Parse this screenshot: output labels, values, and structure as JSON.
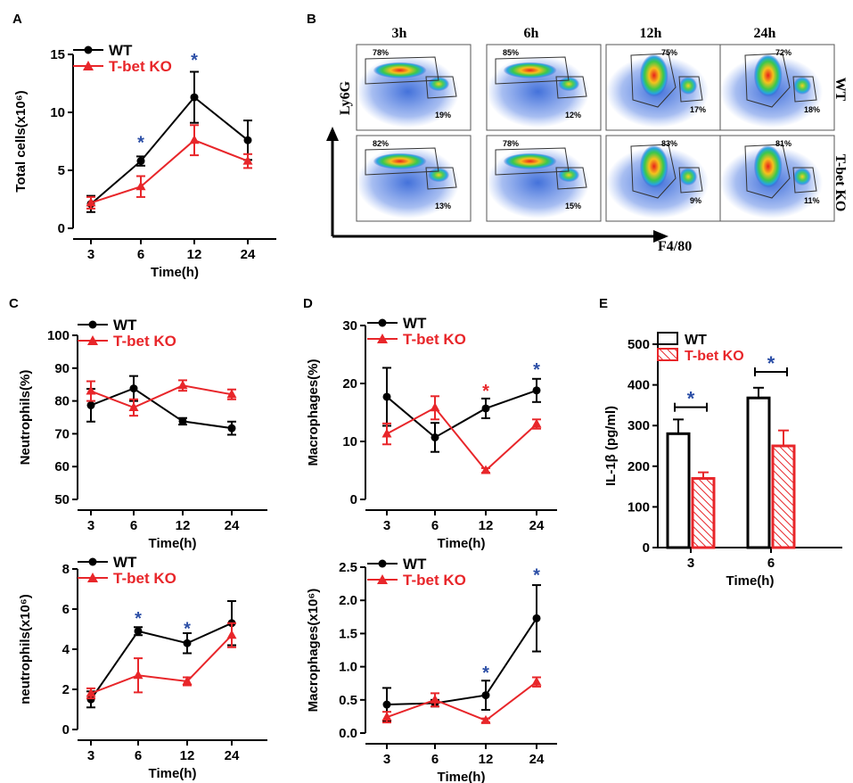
{
  "colors": {
    "wt": "#000000",
    "ko": "#e8262a",
    "sig": "#2b4ea6",
    "sig_red": "#e8262a"
  },
  "panels": {
    "A": {
      "label": "A"
    },
    "B": {
      "label": "B"
    },
    "C": {
      "label": "C"
    },
    "D": {
      "label": "D"
    },
    "E": {
      "label": "E"
    }
  },
  "flow": {
    "timepoints": [
      "3h",
      "6h",
      "12h",
      "24h"
    ],
    "row_labels": [
      "WT",
      "T-bet KO"
    ],
    "y_axis": "Ly6G",
    "x_axis": "F4/80",
    "gates": [
      {
        "row": "WT",
        "time": "3h",
        "top": "78%",
        "bottom": "19%"
      },
      {
        "row": "WT",
        "time": "6h",
        "top": "85%",
        "bottom": "12%"
      },
      {
        "row": "WT",
        "time": "12h",
        "top": "75%",
        "bottom": "17%"
      },
      {
        "row": "WT",
        "time": "24h",
        "top": "72%",
        "bottom": "18%"
      },
      {
        "row": "T-bet KO",
        "time": "3h",
        "top": "82%",
        "bottom": "13%"
      },
      {
        "row": "T-bet KO",
        "time": "6h",
        "top": "78%",
        "bottom": "15%"
      },
      {
        "row": "T-bet KO",
        "time": "12h",
        "top": "83%",
        "bottom": "9%"
      },
      {
        "row": "T-bet KO",
        "time": "24h",
        "top": "81%",
        "bottom": "11%"
      }
    ]
  },
  "chart_data": [
    {
      "id": "A",
      "type": "line",
      "xlabel": "Time(h)",
      "ylabel": "Total cells(x10⁶)",
      "categories": [
        "3",
        "6",
        "12",
        "24"
      ],
      "ylim": [
        0,
        15
      ],
      "yticks": [
        "0",
        "5",
        "10",
        "15"
      ],
      "legend": [
        "WT",
        "T-bet KO"
      ],
      "series": [
        {
          "name": "WT",
          "values": [
            2.1,
            5.8,
            11.3,
            7.6
          ],
          "errors": [
            0.7,
            0.4,
            2.2,
            1.7
          ]
        },
        {
          "name": "T-bet KO",
          "values": [
            2.2,
            3.6,
            7.6,
            5.8
          ],
          "errors": [
            0.5,
            0.9,
            1.3,
            0.6
          ]
        }
      ],
      "annotations": [
        {
          "text": "*",
          "at": "6",
          "value": 7.5
        },
        {
          "text": "*",
          "at": "12",
          "value": 14.6
        }
      ]
    },
    {
      "id": "C1",
      "type": "line",
      "xlabel": "Time(h)",
      "ylabel": "Neutrophils(%)",
      "categories": [
        "3",
        "6",
        "12",
        "24"
      ],
      "ylim": [
        50,
        100
      ],
      "yticks": [
        "50",
        "60",
        "70",
        "80",
        "90",
        "100"
      ],
      "legend": [
        "WT",
        "T-bet KO"
      ],
      "series": [
        {
          "name": "WT",
          "values": [
            78.7,
            83.8,
            73.8,
            71.7
          ],
          "errors": [
            5.0,
            3.8,
            1.0,
            2.0
          ]
        },
        {
          "name": "T-bet KO",
          "values": [
            83.0,
            78.0,
            84.7,
            82.0
          ],
          "errors": [
            3.0,
            2.5,
            1.6,
            1.5
          ]
        }
      ],
      "annotations": []
    },
    {
      "id": "C2",
      "type": "line",
      "xlabel": "Time(h)",
      "ylabel": "neutrophils(x10⁶)",
      "categories": [
        "3",
        "6",
        "12",
        "24"
      ],
      "ylim": [
        0,
        8
      ],
      "yticks": [
        "0",
        "2",
        "4",
        "6",
        "8"
      ],
      "legend": [
        "WT",
        "T-bet KO"
      ],
      "series": [
        {
          "name": "WT",
          "values": [
            1.5,
            4.9,
            4.3,
            5.3
          ],
          "errors": [
            0.4,
            0.2,
            0.5,
            1.1
          ]
        },
        {
          "name": "T-bet KO",
          "values": [
            1.8,
            2.7,
            2.4,
            4.7
          ],
          "errors": [
            0.25,
            0.85,
            0.2,
            0.6
          ]
        }
      ],
      "annotations": [
        {
          "text": "*",
          "at": "6",
          "value": 5.6
        },
        {
          "text": "*",
          "at": "12",
          "value": 5.1
        }
      ]
    },
    {
      "id": "D1",
      "type": "line",
      "xlabel": "Time(h)",
      "ylabel": "Macrophages(%)",
      "categories": [
        "3",
        "6",
        "12",
        "24"
      ],
      "ylim": [
        0,
        30
      ],
      "yticks": [
        "0",
        "10",
        "20",
        "30"
      ],
      "legend": [
        "WT",
        "T-bet KO"
      ],
      "series": [
        {
          "name": "WT",
          "values": [
            17.7,
            10.7,
            15.7,
            18.8
          ],
          "errors": [
            5.0,
            2.5,
            1.7,
            2.0
          ]
        },
        {
          "name": "T-bet KO",
          "values": [
            11.3,
            15.8,
            5.0,
            13.0
          ],
          "errors": [
            1.8,
            2.0,
            0.4,
            0.8
          ]
        }
      ],
      "annotations": [
        {
          "text": "*",
          "at": "12",
          "value": 18.9
        },
        {
          "text": "*",
          "at": "24",
          "value": 22.6
        }
      ]
    },
    {
      "id": "D2",
      "type": "line",
      "xlabel": "Time(h)",
      "ylabel": "Macrophages(x10⁶)",
      "categories": [
        "3",
        "6",
        "12",
        "24"
      ],
      "ylim": [
        0,
        2.5
      ],
      "yticks": [
        "0.0",
        "0.5",
        "1.0",
        "1.5",
        "2.0",
        "2.5"
      ],
      "legend": [
        "WT",
        "T-bet KO"
      ],
      "series": [
        {
          "name": "WT",
          "values": [
            0.43,
            0.45,
            0.57,
            1.73
          ],
          "errors": [
            0.25,
            0.05,
            0.22,
            0.5
          ]
        },
        {
          "name": "T-bet KO",
          "values": [
            0.24,
            0.5,
            0.19,
            0.77
          ],
          "errors": [
            0.08,
            0.1,
            0.03,
            0.07
          ]
        }
      ],
      "annotations": [
        {
          "text": "*",
          "at": "12",
          "value": 0.93
        },
        {
          "text": "*",
          "at": "24",
          "value": 2.4
        }
      ]
    },
    {
      "id": "E",
      "type": "bar",
      "xlabel": "Time(h)",
      "ylabel": "IL-1β (pg/ml)",
      "categories": [
        "3",
        "6"
      ],
      "ylim": [
        0,
        500
      ],
      "yticks": [
        "0",
        "100",
        "200",
        "300",
        "400",
        "500"
      ],
      "legend": [
        "WT",
        "T-bet KO"
      ],
      "series": [
        {
          "name": "WT",
          "values": [
            280,
            368
          ],
          "errors": [
            35,
            25
          ]
        },
        {
          "name": "T-bet KO",
          "values": [
            170,
            250
          ],
          "errors": [
            15,
            38
          ]
        }
      ],
      "annotations": [
        {
          "text": "*",
          "at": "3",
          "value": 345
        },
        {
          "text": "*",
          "at": "6",
          "value": 432
        }
      ]
    }
  ]
}
